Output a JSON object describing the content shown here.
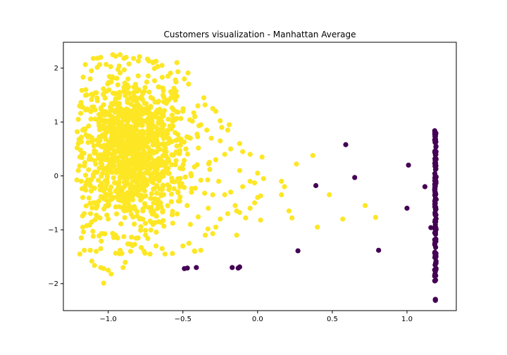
{
  "chart_data": {
    "type": "scatter",
    "title": "Customers visualization - Manhattan Average",
    "xlabel": "",
    "ylabel": "",
    "xlim": [
      -1.3,
      1.33
    ],
    "ylim": [
      -2.5,
      2.48
    ],
    "x_ticks": [
      -1.0,
      -0.5,
      0.0,
      0.5,
      1.0
    ],
    "x_tick_labels": [
      "−1.0",
      "−0.5",
      "0.0",
      "0.5",
      "1.0"
    ],
    "y_ticks": [
      -2,
      -1,
      0,
      1,
      2
    ],
    "y_tick_labels": [
      "−2",
      "−1",
      "0",
      "1",
      "2"
    ],
    "grid": false,
    "legend": "none",
    "colors": {
      "cluster_yellow": "#fde725",
      "cluster_purple": "#440154"
    },
    "series": [
      {
        "color": "#fde725",
        "points": [
          [
            -1.05,
            2.2
          ],
          [
            -0.95,
            2.22
          ],
          [
            -0.92,
            2.25
          ],
          [
            -0.88,
            2.2
          ],
          [
            -0.83,
            2.18
          ],
          [
            -1.1,
            2.18
          ],
          [
            -0.7,
            2.1
          ],
          [
            -0.64,
            2.05
          ],
          [
            -0.55,
            1.78
          ],
          [
            -0.49,
            1.8
          ],
          [
            -0.6,
            1.85
          ],
          [
            -1.12,
            1.8
          ],
          [
            -1.15,
            1.6
          ],
          [
            -1.18,
            1.3
          ],
          [
            -1.2,
            1.05
          ],
          [
            -1.17,
            0.85
          ],
          [
            -1.2,
            0.6
          ],
          [
            -1.19,
            0.35
          ],
          [
            -1.2,
            0.1
          ],
          [
            -1.18,
            -0.1
          ],
          [
            -1.17,
            -0.4
          ],
          [
            -1.16,
            -0.7
          ],
          [
            -1.17,
            -0.95
          ],
          [
            -1.18,
            -1.15
          ],
          [
            -1.16,
            -1.38
          ],
          [
            -1.19,
            -1.45
          ],
          [
            -1.12,
            -1.38
          ],
          [
            -1.08,
            -1.4
          ],
          [
            -1.05,
            -1.35
          ],
          [
            -1.1,
            -1.12
          ],
          [
            -1.05,
            -1.7
          ],
          [
            -1.03,
            -1.72
          ],
          [
            -1.0,
            -1.75
          ],
          [
            -0.98,
            -1.82
          ],
          [
            -1.03,
            -1.99
          ],
          [
            -0.9,
            -1.7
          ],
          [
            -0.92,
            -1.38
          ],
          [
            -0.85,
            -1.4
          ],
          [
            -0.8,
            -1.15
          ],
          [
            -0.76,
            -1.4
          ],
          [
            -0.72,
            -1.45
          ],
          [
            -0.68,
            -1.3
          ],
          [
            -0.62,
            -1.45
          ],
          [
            -0.57,
            -1.44
          ],
          [
            -0.5,
            -1.3
          ],
          [
            -0.46,
            -1.25
          ],
          [
            -0.42,
            -1.4
          ],
          [
            -0.38,
            -1.38
          ],
          [
            -0.35,
            -1.1
          ],
          [
            -0.3,
            -1.07
          ],
          [
            -0.28,
            -0.95
          ],
          [
            -0.25,
            -0.8
          ],
          [
            -0.2,
            -0.7
          ],
          [
            -0.15,
            -0.55
          ],
          [
            -0.14,
            -0.65
          ],
          [
            -0.12,
            -0.68
          ],
          [
            -0.08,
            -0.78
          ],
          [
            -0.05,
            -0.6
          ],
          [
            -0.02,
            -0.5
          ],
          [
            0.0,
            -0.4
          ],
          [
            0.02,
            -0.37
          ],
          [
            0.02,
            -0.82
          ],
          [
            -0.14,
            -1.1
          ],
          [
            -0.33,
            -0.6
          ],
          [
            -0.22,
            -0.35
          ],
          [
            -0.18,
            -0.3
          ],
          [
            -0.1,
            -0.2
          ],
          [
            -0.05,
            -0.1
          ],
          [
            -0.02,
            -0.13
          ],
          [
            0.0,
            0.05
          ],
          [
            0.04,
            -0.05
          ],
          [
            0.03,
            0.35
          ],
          [
            -0.05,
            0.4
          ],
          [
            -0.1,
            0.45
          ],
          [
            -0.12,
            0.6
          ],
          [
            -0.18,
            0.5
          ],
          [
            -0.22,
            0.4
          ],
          [
            -0.2,
            0.85
          ],
          [
            -0.19,
            0.95
          ],
          [
            -0.24,
            0.9
          ],
          [
            -0.28,
            1.2
          ],
          [
            -0.3,
            1.25
          ],
          [
            -0.36,
            1.45
          ],
          [
            -0.4,
            1.3
          ],
          [
            -0.42,
            1.1
          ],
          [
            -0.38,
            0.95
          ],
          [
            -0.31,
            0.7
          ],
          [
            -0.28,
            0.3
          ],
          [
            -0.26,
            -0.1
          ],
          [
            0.16,
            -0.1
          ],
          [
            0.16,
            -0.35
          ],
          [
            0.18,
            -0.2
          ],
          [
            0.21,
            -0.65
          ],
          [
            0.26,
            0.22
          ],
          [
            0.23,
            -0.78
          ],
          [
            0.37,
            0.38
          ],
          [
            0.4,
            -0.95
          ],
          [
            0.48,
            -0.35
          ],
          [
            0.57,
            -0.8
          ],
          [
            0.72,
            -0.55
          ],
          [
            0.79,
            -0.77
          ],
          [
            -0.38,
            -0.08
          ],
          [
            -0.32,
            0.12
          ],
          [
            -0.45,
            0.7
          ],
          [
            -0.5,
            1.2
          ],
          [
            -0.55,
            1.5
          ],
          [
            -0.6,
            0.3
          ],
          [
            -0.65,
            -0.5
          ],
          [
            -0.7,
            -0.9
          ],
          [
            -0.75,
            -1.1
          ],
          [
            -0.95,
            -1.1
          ],
          [
            -1.0,
            -0.8
          ],
          [
            -1.1,
            -0.5
          ],
          [
            -0.45,
            -0.9
          ],
          [
            -0.3,
            -0.35
          ],
          [
            -0.12,
            0.1
          ],
          [
            -0.25,
            0.65
          ],
          [
            -0.34,
            0.85
          ],
          [
            -0.48,
            0.5
          ],
          [
            -0.52,
            -0.2
          ]
        ],
        "cluster": {
          "cx": -0.85,
          "cy": 0.45,
          "sx": 0.19,
          "sy": 0.72,
          "n": 1300,
          "xmin": -1.21,
          "xmax": 0.0,
          "ymin": -1.75,
          "ymax": 2.25
        }
      },
      {
        "color": "#440154",
        "points": [
          [
            0.59,
            0.58
          ],
          [
            0.39,
            -0.18
          ],
          [
            0.65,
            -0.03
          ],
          [
            1.01,
            0.2
          ],
          [
            1.12,
            -0.2
          ],
          [
            1.0,
            -0.6
          ],
          [
            1.16,
            -0.96
          ],
          [
            0.81,
            -1.38
          ],
          [
            0.27,
            -1.39
          ],
          [
            -0.49,
            -1.72
          ],
          [
            -0.47,
            -1.71
          ],
          [
            -0.41,
            -1.7
          ],
          [
            -0.17,
            -1.7
          ],
          [
            -0.13,
            -1.71
          ],
          [
            -0.12,
            -1.69
          ]
        ],
        "column": {
          "x": 1.19,
          "ymin": -1.96,
          "ymax": 0.85,
          "n": 140,
          "extra_y": [
            -2.3,
            -2.3,
            -2.29,
            -2.31
          ]
        }
      }
    ]
  }
}
